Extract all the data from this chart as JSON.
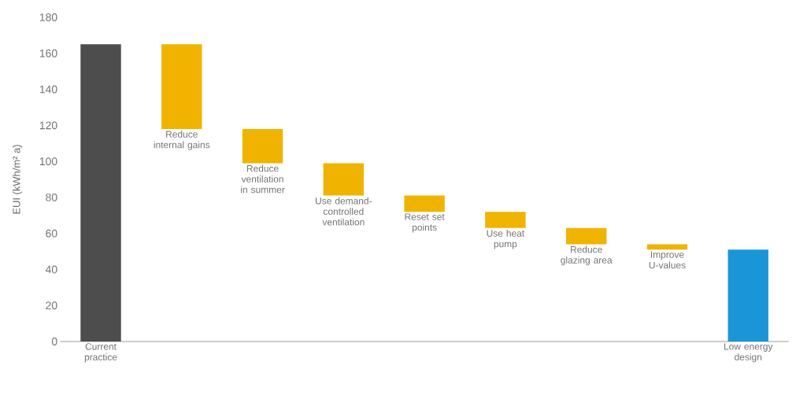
{
  "chart_data": {
    "type": "bar",
    "ylabel": "EUI (kWh/m² a)",
    "categories": [
      "Current practice",
      "Reduce internal gains",
      "Reduce ventilation in summer",
      "Use demand-controlled ventilation",
      "Reset set points",
      "Use heat pump",
      "Reduce glazing area",
      "Improve U-values",
      "Low energy design"
    ],
    "values": [
      165,
      -47,
      -19,
      -18,
      -9,
      -9,
      -9,
      -3,
      51
    ],
    "base": [
      0,
      165,
      118,
      99,
      81,
      72,
      63,
      54,
      0
    ],
    "colors": [
      "#4d4d4d",
      "#f0b400",
      "#f0b400",
      "#f0b400",
      "#f0b400",
      "#f0b400",
      "#f0b400",
      "#f0b400",
      "#1a96d8"
    ],
    "ylim": [
      0,
      180
    ],
    "yticks": [
      0,
      20,
      40,
      60,
      80,
      100,
      120,
      140,
      160,
      180
    ],
    "tick_labels": "y",
    "grid": false
  }
}
